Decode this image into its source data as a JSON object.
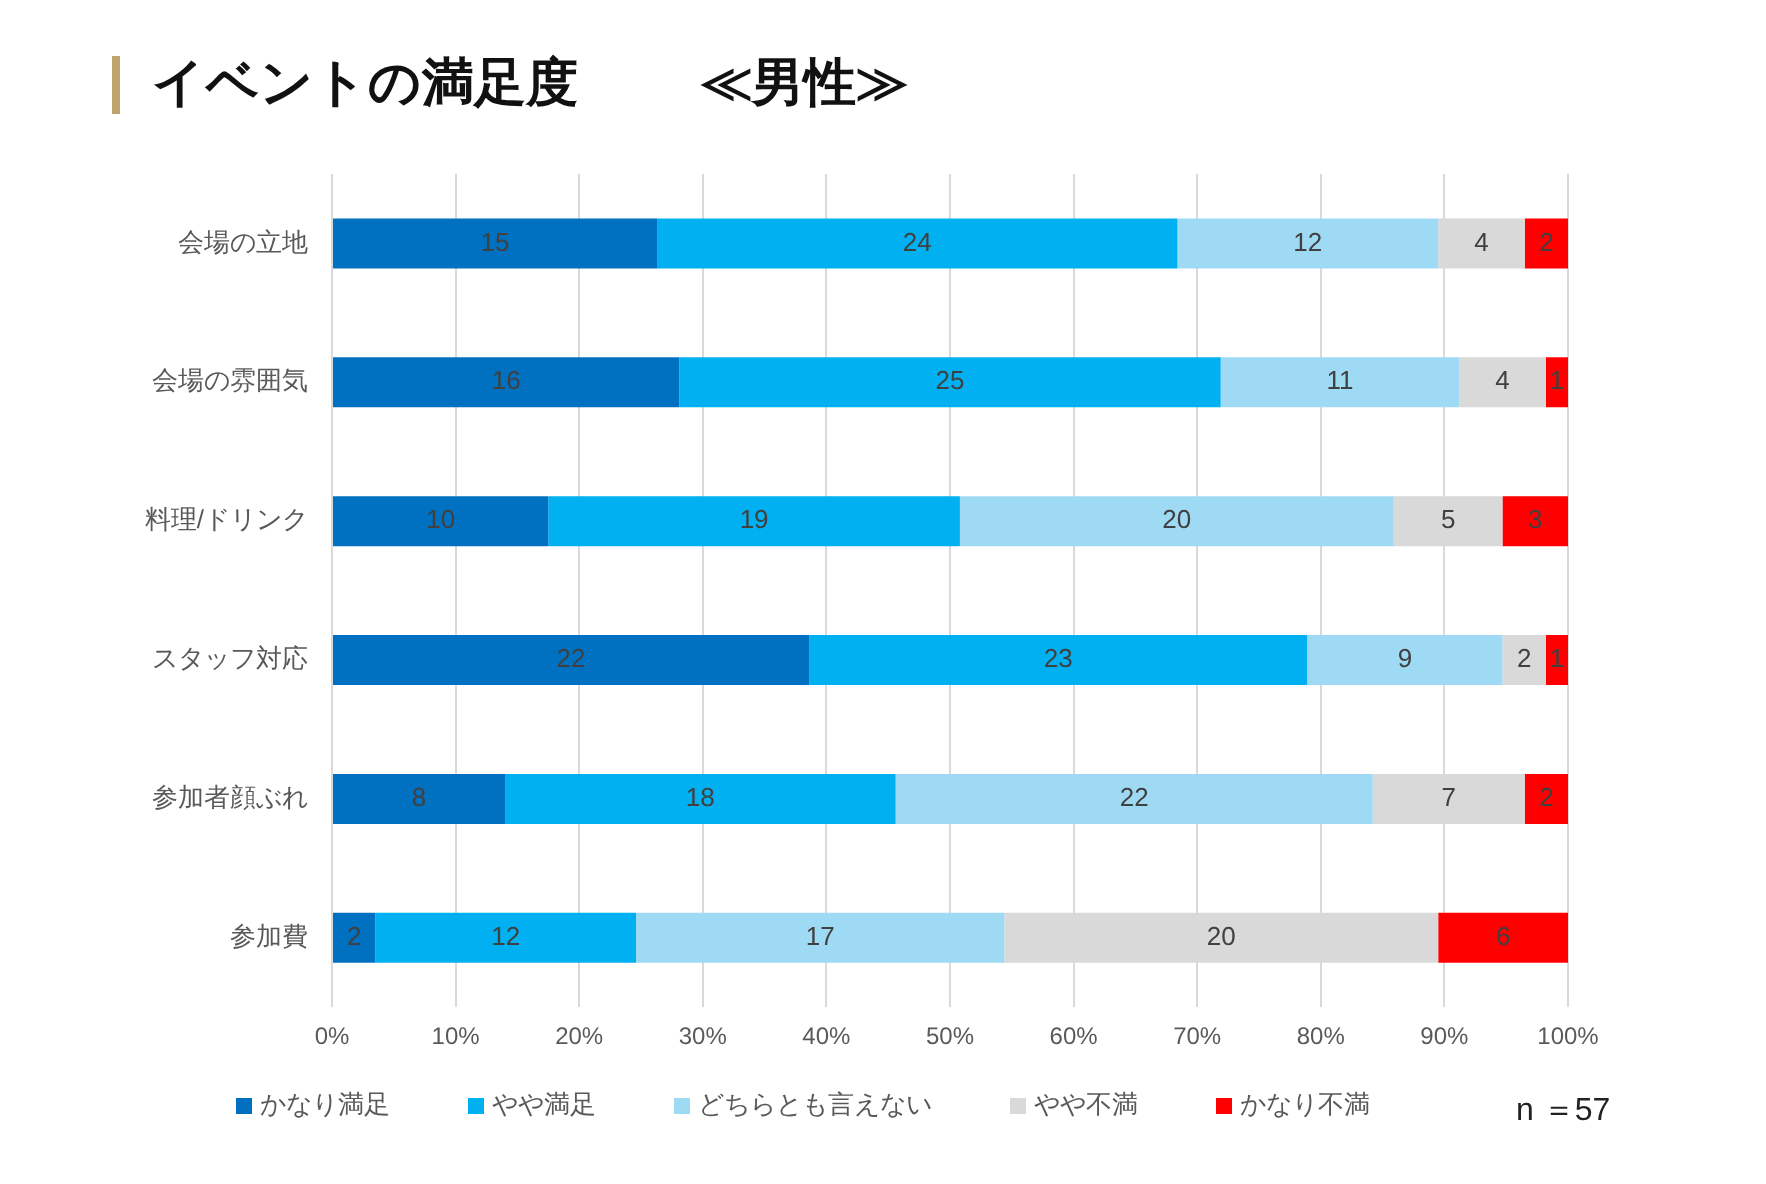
{
  "chart_data": {
    "type": "bar",
    "orientation": "horizontal",
    "stacked": true,
    "title": "イベントの満足度",
    "subtitle": "≪男性≫",
    "categories": [
      "会場の立地",
      "会場の雰囲気",
      "料理/ドリンク",
      "スタッフ対応",
      "参加者顔ぶれ",
      "参加費"
    ],
    "series": [
      {
        "name": "かなり満足",
        "color": "#0070c0",
        "values": [
          26.3,
          28.1,
          17.5,
          38.6,
          14.0,
          3.5
        ]
      },
      {
        "name": "やや満足",
        "color": "#00b0f0",
        "values": [
          42.1,
          43.8,
          33.3,
          40.3,
          31.6,
          21.1
        ]
      },
      {
        "name": "どちらとも言えない",
        "color": "#9fdaf5",
        "values": [
          21.1,
          19.3,
          35.1,
          15.8,
          38.6,
          29.8
        ]
      },
      {
        "name": "やや不満",
        "color": "#d9d9d9",
        "values": [
          7.0,
          7.0,
          8.8,
          3.5,
          12.3,
          35.1
        ]
      },
      {
        "name": "かなり不満",
        "color": "#ff0000",
        "values": [
          3.5,
          1.8,
          5.3,
          1.8,
          3.5,
          10.5
        ]
      }
    ],
    "xlim": [
      0,
      100
    ],
    "xticks": [
      {
        "value": 0,
        "label": "0%"
      },
      {
        "value": 10,
        "label": "10%"
      },
      {
        "value": 20,
        "label": "20%"
      },
      {
        "value": 30,
        "label": "30%"
      },
      {
        "value": 40,
        "label": "40%"
      },
      {
        "value": 50,
        "label": "50%"
      },
      {
        "value": 60,
        "label": "60%"
      },
      {
        "value": 70,
        "label": "70%"
      },
      {
        "value": 80,
        "label": "80%"
      },
      {
        "value": 90,
        "label": "90%"
      },
      {
        "value": 100,
        "label": "100%"
      }
    ],
    "grid": "x",
    "legend": "bottom",
    "annotations": [
      "15",
      "24",
      "12",
      "4",
      "2",
      "16",
      "25",
      "11",
      "4",
      "1",
      "10",
      "19",
      "20",
      "5",
      "3",
      "22",
      "23",
      "9",
      "2",
      "1",
      "8",
      "18",
      "22",
      "7",
      "2",
      "2",
      "12",
      "17",
      "20",
      "6",
      "n ＝57"
    ]
  }
}
